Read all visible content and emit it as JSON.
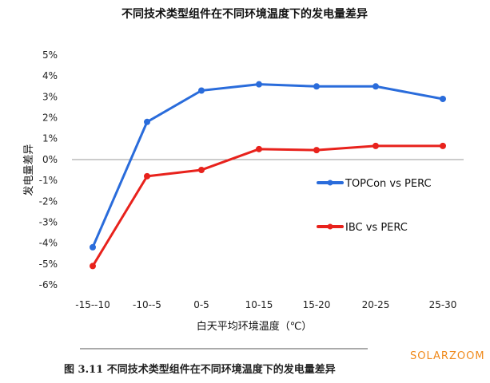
{
  "chart_data": {
    "type": "line",
    "title": "不同技术类型组件在不同环境温度下的发电量差异",
    "xlabel": "白天平均环境温度（℃）",
    "ylabel": "发电量差异",
    "categories": [
      "-15--10",
      "-10--5",
      "0-5",
      "10-15",
      "15-20",
      "20-25",
      "25-30"
    ],
    "ylim": [
      -6,
      5
    ],
    "yticks": [
      "5%",
      "4%",
      "3%",
      "2%",
      "1%",
      "0%",
      "-1%",
      "-2%",
      "-3%",
      "-4%",
      "-5%",
      "-6%"
    ],
    "grid": false,
    "legend_position": "right",
    "series": [
      {
        "name": "TOPCon vs PERC",
        "color": "#2a6cdb",
        "values": [
          -4.2,
          1.8,
          3.3,
          3.6,
          3.5,
          3.5,
          2.9
        ]
      },
      {
        "name": "IBC vs PERC",
        "color": "#e8221c",
        "values": [
          -5.1,
          -0.8,
          -0.5,
          0.5,
          0.45,
          0.65,
          0.65
        ]
      }
    ]
  },
  "caption": "图 3.11  不同技术类型组件在不同环境温度下的发电量差异",
  "watermark": "SOLARZOOM"
}
